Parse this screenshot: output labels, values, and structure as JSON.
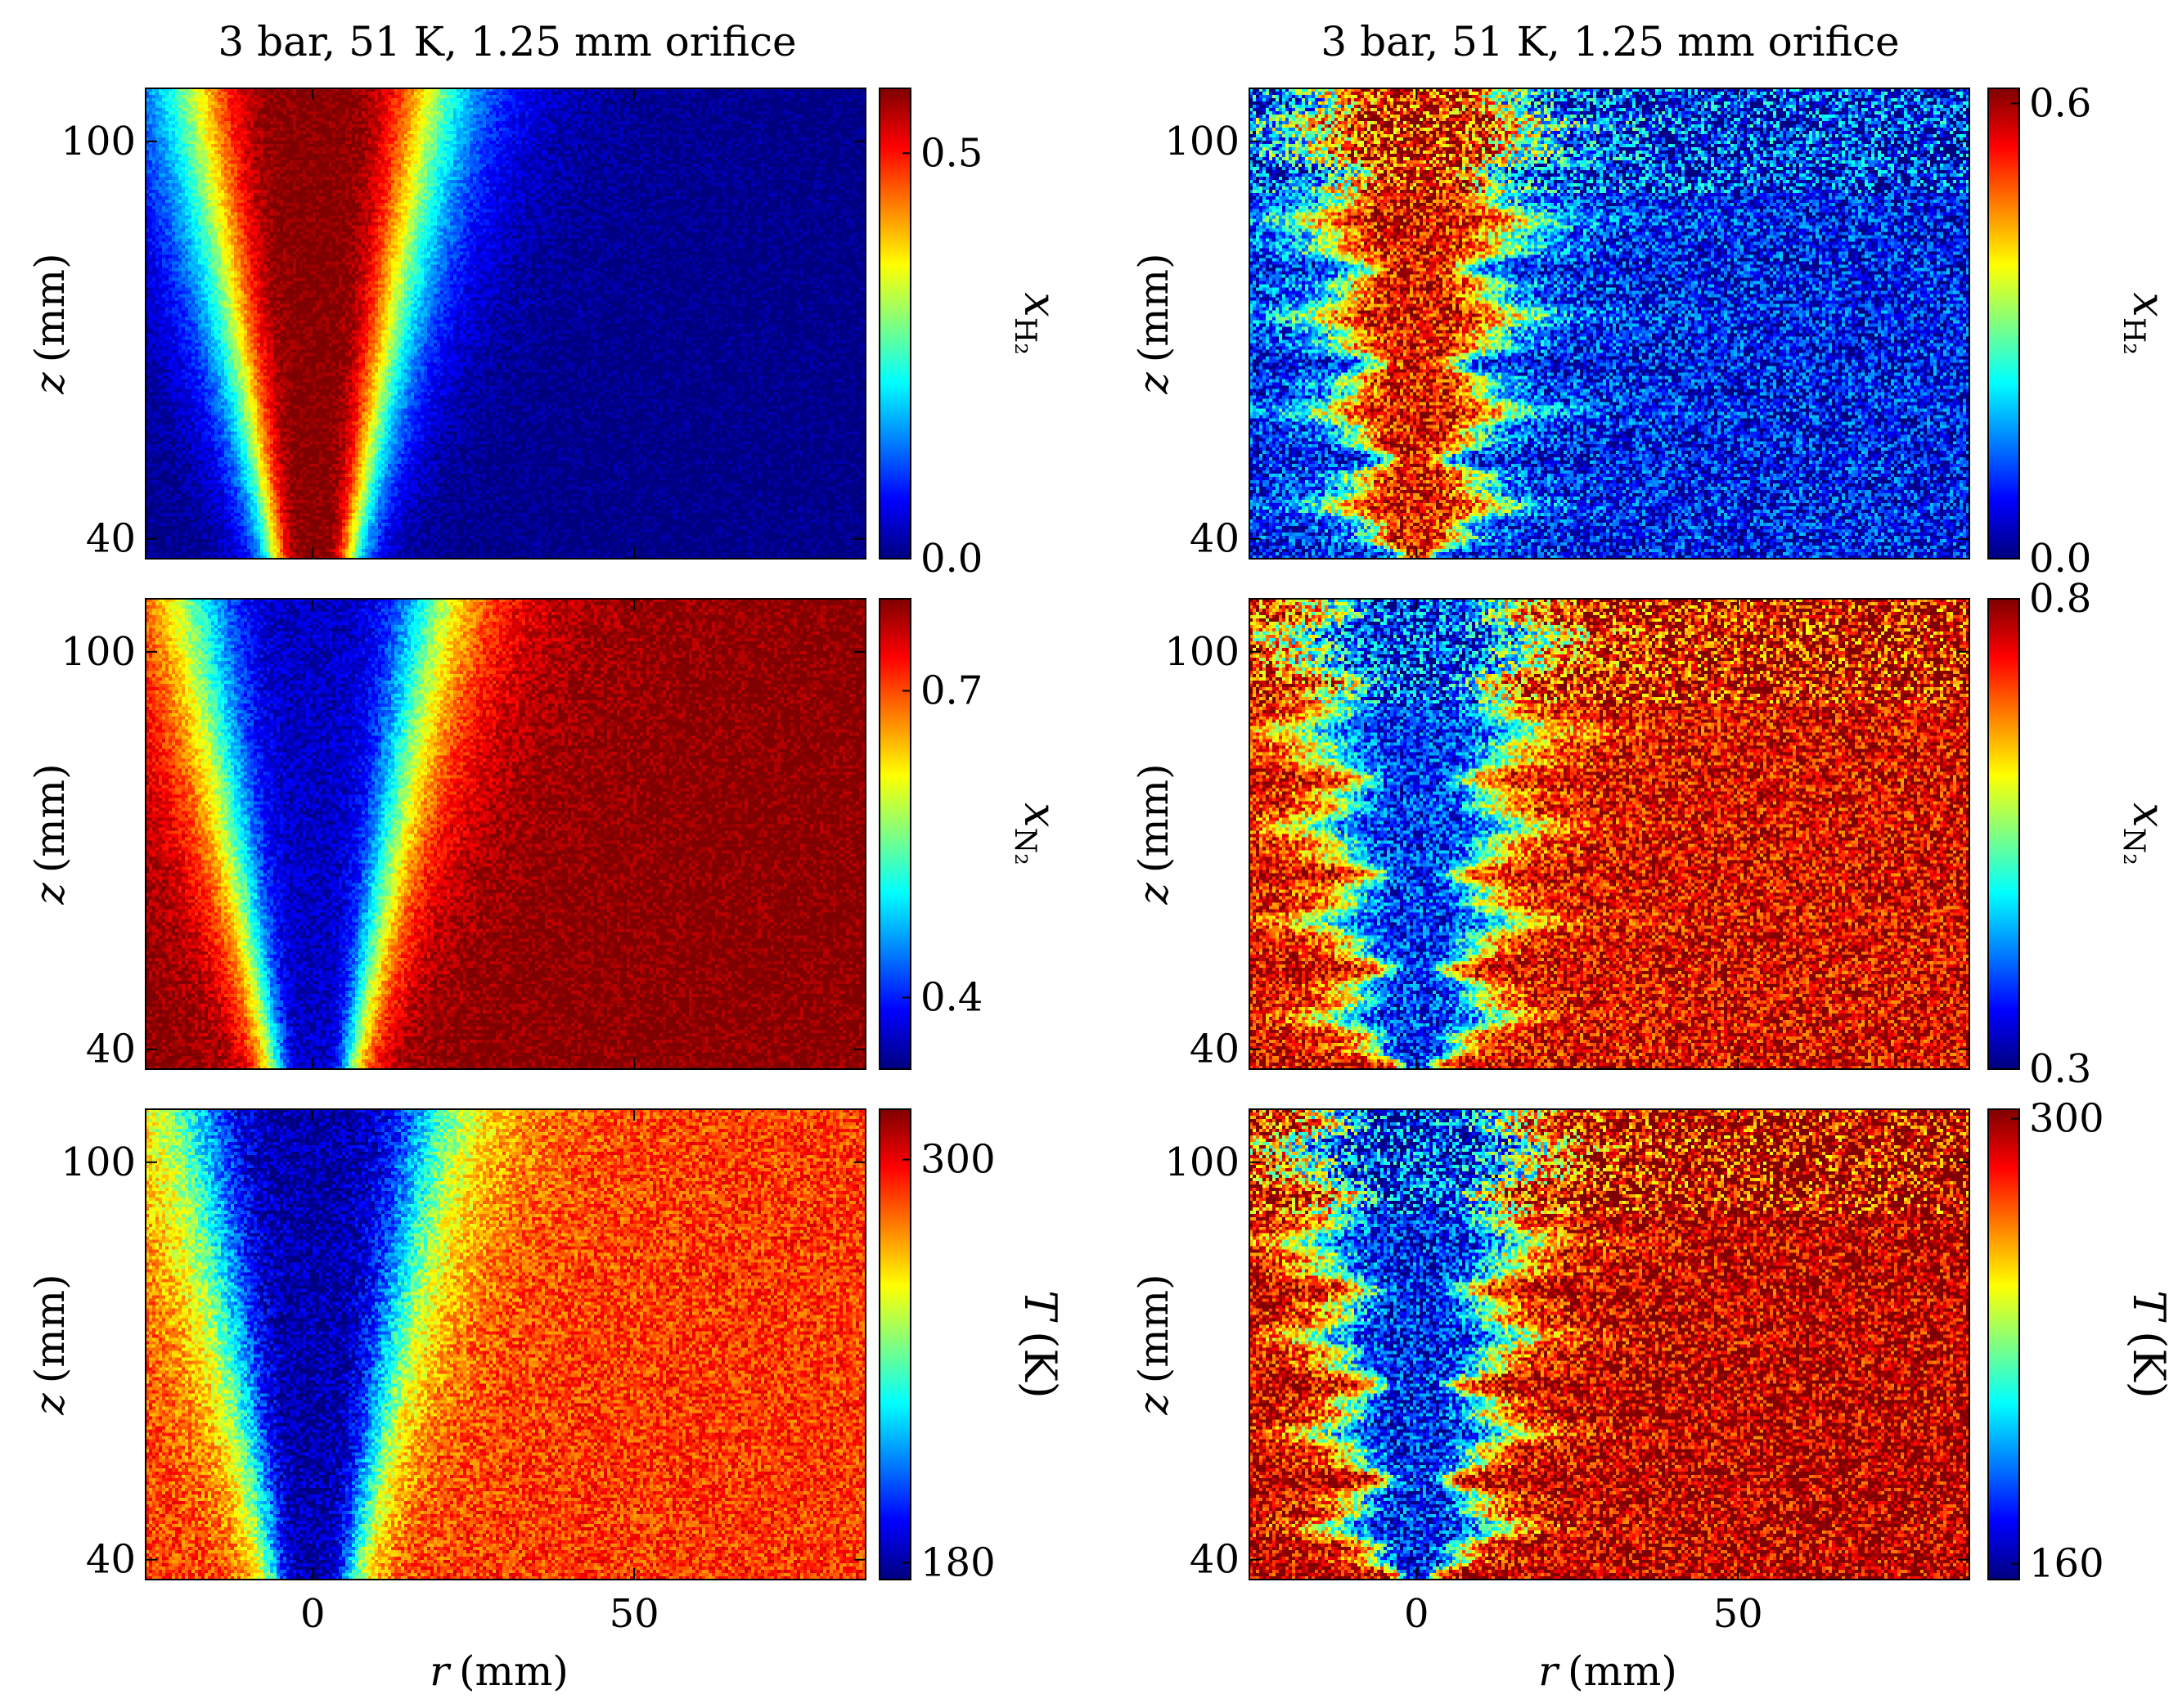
{
  "figure": {
    "columns": [
      {
        "title": "3 bar, 51 K, 1.25 mm orifice"
      },
      {
        "title": "3 bar, 51 K, 1.25 mm orifice"
      }
    ],
    "ylabel_var": "z",
    "ylabel_unit": "(mm)",
    "xlabel_var": "r",
    "xlabel_unit": "(mm)"
  },
  "colors": {
    "jet": [
      "#00007f",
      "#0000ff",
      "#0080ff",
      "#00ffff",
      "#80ff80",
      "#ffff00",
      "#ff8000",
      "#ff0000",
      "#7f0000"
    ]
  },
  "chart_data": [
    {
      "type": "heatmap",
      "panel": "left-top",
      "quantity": "H2 mole fraction",
      "title": "3 bar, 51 K, 1.25 mm orifice",
      "xlim": [
        -26,
        86
      ],
      "ylim": [
        37,
        108
      ],
      "xticks": [
        0,
        50
      ],
      "xtick_labels": [
        "0",
        "50"
      ],
      "yticks": [
        40,
        100
      ],
      "ytick_labels": [
        "40",
        "100"
      ],
      "colorbar": {
        "label_var": "x",
        "label_sub": "H₂",
        "unit": "",
        "range": [
          0.0,
          0.58
        ],
        "ticks": [
          0.0,
          0.5
        ],
        "tick_labels": [
          "0.0",
          "0.5"
        ]
      },
      "field": {
        "core": 0.58,
        "ambient": 0.0,
        "half_width_at_40": 7,
        "half_width_at_108": 20,
        "noise": 0.03
      }
    },
    {
      "type": "heatmap",
      "panel": "right-top",
      "quantity": "H2 mole fraction",
      "title": "3 bar, 51 K, 1.25 mm orifice",
      "xlim": [
        -26,
        86
      ],
      "ylim": [
        37,
        108
      ],
      "xticks": [
        0,
        50
      ],
      "xtick_labels": [
        "0",
        "50"
      ],
      "yticks": [
        40,
        100
      ],
      "ytick_labels": [
        "40",
        "100"
      ],
      "colorbar": {
        "label_var": "x",
        "label_sub": "H₂",
        "unit": "",
        "range": [
          0.0,
          0.62
        ],
        "ticks": [
          0.0,
          0.6
        ],
        "tick_labels": [
          "0.0",
          "0.6"
        ]
      },
      "field": {
        "core": 0.55,
        "ambient": 0.08,
        "half_width_at_40": 8,
        "half_width_at_108": 16,
        "noise": 0.12
      }
    },
    {
      "type": "heatmap",
      "panel": "left-middle",
      "quantity": "N2 mole fraction",
      "xlim": [
        -26,
        86
      ],
      "ylim": [
        37,
        108
      ],
      "xticks": [
        0,
        50
      ],
      "xtick_labels": [
        "0",
        "50"
      ],
      "yticks": [
        40,
        100
      ],
      "ytick_labels": [
        "40",
        "100"
      ],
      "colorbar": {
        "label_var": "x",
        "label_sub": "N₂",
        "unit": "",
        "range": [
          0.33,
          0.79
        ],
        "ticks": [
          0.4,
          0.7
        ],
        "tick_labels": [
          "0.4",
          "0.7"
        ]
      },
      "field": {
        "core": 0.36,
        "ambient": 0.79,
        "half_width_at_40": 7,
        "half_width_at_108": 20,
        "noise": 0.03
      }
    },
    {
      "type": "heatmap",
      "panel": "right-middle",
      "quantity": "N2 mole fraction",
      "xlim": [
        -26,
        86
      ],
      "ylim": [
        37,
        108
      ],
      "xticks": [
        0,
        50
      ],
      "xtick_labels": [
        "0",
        "50"
      ],
      "yticks": [
        40,
        100
      ],
      "ytick_labels": [
        "40",
        "100"
      ],
      "colorbar": {
        "label_var": "x",
        "label_sub": "N₂",
        "unit": "",
        "range": [
          0.3,
          0.8
        ],
        "ticks": [
          0.3,
          0.8
        ],
        "tick_labels": [
          "0.3",
          "0.8"
        ]
      },
      "field": {
        "core": 0.38,
        "ambient": 0.75,
        "half_width_at_40": 8,
        "half_width_at_108": 16,
        "noise": 0.09
      }
    },
    {
      "type": "heatmap",
      "panel": "left-bottom",
      "quantity": "Temperature",
      "xlim": [
        -26,
        86
      ],
      "ylim": [
        37,
        108
      ],
      "xticks": [
        0,
        50
      ],
      "xtick_labels": [
        "0",
        "50"
      ],
      "yticks": [
        40,
        100
      ],
      "ytick_labels": [
        "40",
        "100"
      ],
      "colorbar": {
        "label_var": "T",
        "label_sub": "",
        "unit": "(K)",
        "range": [
          175,
          315
        ],
        "ticks": [
          180,
          300
        ],
        "tick_labels": [
          "180",
          "300"
        ]
      },
      "field": {
        "core": 180,
        "ambient": 290,
        "half_width_at_40": 7,
        "half_width_at_108": 20,
        "noise": 14
      }
    },
    {
      "type": "heatmap",
      "panel": "right-bottom",
      "quantity": "Temperature",
      "xlim": [
        -26,
        86
      ],
      "ylim": [
        37,
        108
      ],
      "xticks": [
        0,
        50
      ],
      "xtick_labels": [
        "0",
        "50"
      ],
      "yticks": [
        40,
        100
      ],
      "ytick_labels": [
        "40",
        "100"
      ],
      "colorbar": {
        "label_var": "T",
        "label_sub": "",
        "unit": "(K)",
        "range": [
          155,
          303
        ],
        "ticks": [
          160,
          300
        ],
        "tick_labels": [
          "160",
          "300"
        ]
      },
      "field": {
        "core": 175,
        "ambient": 295,
        "half_width_at_40": 8,
        "half_width_at_108": 16,
        "noise": 30
      }
    }
  ]
}
